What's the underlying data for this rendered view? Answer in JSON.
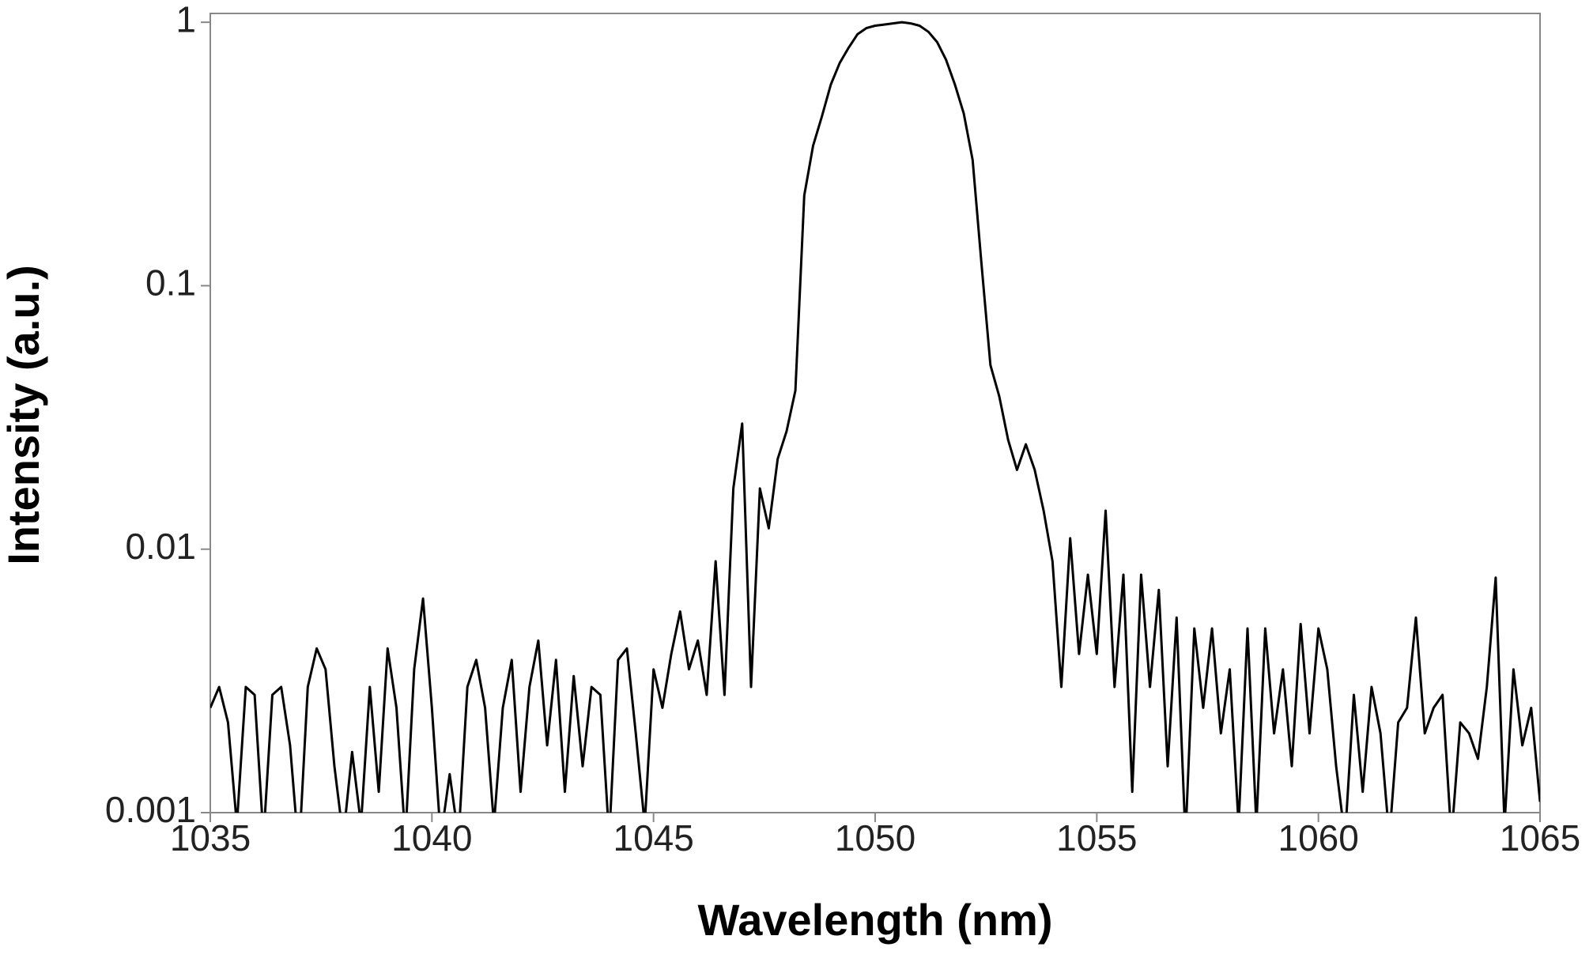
{
  "chart_data": {
    "type": "line",
    "xlabel": "Wavelength (nm)",
    "ylabel": "Intensity (a.u.)",
    "xlim": [
      1035,
      1065
    ],
    "xticks": [
      1035,
      1040,
      1045,
      1050,
      1055,
      1060,
      1065
    ],
    "ylim": [
      0.001,
      1.08
    ],
    "yticks": [
      0.001,
      0.01,
      0.1,
      1
    ],
    "log_y": true,
    "grid": false,
    "x": [
      1035.0,
      1035.2,
      1035.4,
      1035.6,
      1035.8,
      1036.0,
      1036.2,
      1036.4,
      1036.6,
      1036.8,
      1037.0,
      1037.2,
      1037.4,
      1037.6,
      1037.8,
      1038.0,
      1038.2,
      1038.4,
      1038.6,
      1038.8,
      1039.0,
      1039.2,
      1039.4,
      1039.6,
      1039.8,
      1040.0,
      1040.2,
      1040.4,
      1040.6,
      1040.8,
      1041.0,
      1041.2,
      1041.4,
      1041.6,
      1041.8,
      1042.0,
      1042.2,
      1042.4,
      1042.6,
      1042.8,
      1043.0,
      1043.2,
      1043.4,
      1043.6,
      1043.8,
      1044.0,
      1044.2,
      1044.4,
      1044.6,
      1044.8,
      1045.0,
      1045.2,
      1045.4,
      1045.6,
      1045.8,
      1046.0,
      1046.2,
      1046.4,
      1046.6,
      1046.8,
      1047.0,
      1047.2,
      1047.4,
      1047.6,
      1047.8,
      1048.0,
      1048.2,
      1048.4,
      1048.6,
      1048.8,
      1049.0,
      1049.2,
      1049.4,
      1049.6,
      1049.8,
      1050.0,
      1050.2,
      1050.4,
      1050.6,
      1050.8,
      1051.0,
      1051.2,
      1051.4,
      1051.6,
      1051.8,
      1052.0,
      1052.2,
      1052.4,
      1052.6,
      1052.8,
      1053.0,
      1053.2,
      1053.4,
      1053.6,
      1053.8,
      1054.0,
      1054.2,
      1054.4,
      1054.6,
      1054.8,
      1055.0,
      1055.2,
      1055.4,
      1055.6,
      1055.8,
      1056.0,
      1056.2,
      1056.4,
      1056.6,
      1056.8,
      1057.0,
      1057.2,
      1057.4,
      1057.6,
      1057.8,
      1058.0,
      1058.2,
      1058.4,
      1058.6,
      1058.8,
      1059.0,
      1059.2,
      1059.4,
      1059.6,
      1059.8,
      1060.0,
      1060.2,
      1060.4,
      1060.6,
      1060.8,
      1061.0,
      1061.2,
      1061.4,
      1061.6,
      1061.8,
      1062.0,
      1062.2,
      1062.4,
      1062.6,
      1062.8,
      1063.0,
      1063.2,
      1063.4,
      1063.6,
      1063.8,
      1064.0,
      1064.2,
      1064.4,
      1064.6,
      1064.8,
      1065.0
    ],
    "series": [
      {
        "color": "#000000",
        "values": [
          0.0025,
          0.003,
          0.0022,
          0.0009,
          0.003,
          0.0028,
          0.0008,
          0.0028,
          0.003,
          0.0018,
          0.0007,
          0.003,
          0.0042,
          0.0035,
          0.0015,
          0.0008,
          0.0017,
          0.0009,
          0.003,
          0.0012,
          0.0042,
          0.0025,
          0.0008,
          0.0035,
          0.0065,
          0.0025,
          0.0008,
          0.0014,
          0.0008,
          0.003,
          0.0038,
          0.0025,
          0.0009,
          0.0025,
          0.0038,
          0.0012,
          0.003,
          0.0045,
          0.0018,
          0.0038,
          0.0012,
          0.0033,
          0.0015,
          0.003,
          0.0028,
          0.0008,
          0.0038,
          0.0042,
          0.002,
          0.0009,
          0.0035,
          0.0025,
          0.004,
          0.0058,
          0.0035,
          0.0045,
          0.0028,
          0.009,
          0.0028,
          0.017,
          0.03,
          0.003,
          0.017,
          0.012,
          0.022,
          0.028,
          0.04,
          0.22,
          0.34,
          0.44,
          0.58,
          0.7,
          0.8,
          0.9,
          0.95,
          0.97,
          0.98,
          0.99,
          1.0,
          0.99,
          0.97,
          0.92,
          0.84,
          0.72,
          0.58,
          0.45,
          0.3,
          0.12,
          0.05,
          0.038,
          0.026,
          0.02,
          0.025,
          0.02,
          0.014,
          0.009,
          0.003,
          0.011,
          0.004,
          0.008,
          0.004,
          0.014,
          0.003,
          0.008,
          0.0012,
          0.008,
          0.003,
          0.007,
          0.0015,
          0.0055,
          0.0008,
          0.005,
          0.0025,
          0.005,
          0.002,
          0.0035,
          0.0009,
          0.005,
          0.0009,
          0.005,
          0.002,
          0.0035,
          0.0015,
          0.0052,
          0.002,
          0.005,
          0.0035,
          0.0015,
          0.0008,
          0.0028,
          0.0012,
          0.003,
          0.002,
          0.0008,
          0.0022,
          0.0025,
          0.0055,
          0.002,
          0.0025,
          0.0028,
          0.0008,
          0.0022,
          0.002,
          0.0016,
          0.003,
          0.0078,
          0.0009,
          0.0035,
          0.0018,
          0.0025,
          0.0011
        ]
      }
    ]
  }
}
